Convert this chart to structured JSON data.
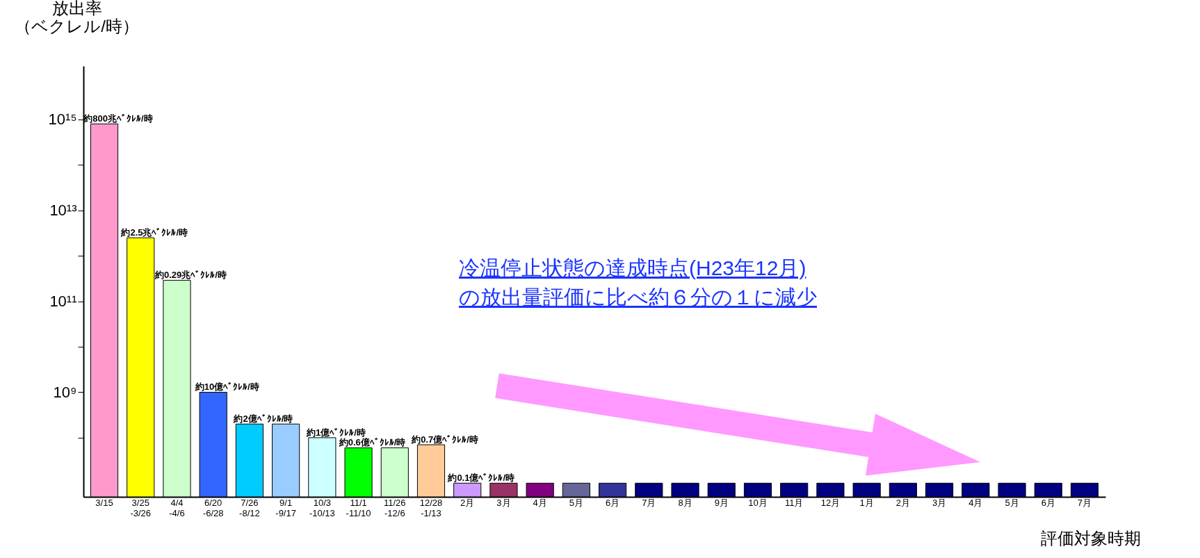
{
  "chart_data": {
    "type": "bar",
    "ylabel": "放出率（ベクレル/時）",
    "xlabel": "評価対象時期",
    "categories": [
      "3/15",
      "3/25\n-3/26",
      "4/4\n-4/6",
      "6/20\n-6/28",
      "7/26\n-8/12",
      "9/1\n-9/17",
      "10/3\n-10/13",
      "11/1\n-11/10",
      "11/26\n-12/6",
      "12/28\n-1/13",
      "2月",
      "3月",
      "4月",
      "5月",
      "6月",
      "7月",
      "8月",
      "9月",
      "10月",
      "11月",
      "12月",
      "1月",
      "2月",
      "3月",
      "4月",
      "5月",
      "6月",
      "7月"
    ],
    "values": [
      800000000000000.0,
      2500000000000.0,
      290000000000.0,
      1000000000.0,
      200000000.0,
      200000000.0,
      100000000.0,
      60000000.0,
      60000000.0,
      70000000.0,
      10000000.0,
      10000000.0,
      10000000.0,
      10000000.0,
      10000000.0,
      10000000.0,
      10000000.0,
      10000000.0,
      10000000.0,
      10000000.0,
      10000000.0,
      10000000.0,
      10000000.0,
      10000000.0,
      10000000.0,
      10000000.0,
      10000000.0,
      10000000.0
    ],
    "colors": [
      "#ff99cc",
      "#ffff00",
      "#ccffcc",
      "#3366ff",
      "#00ccff",
      "#99ccff",
      "#ccffff",
      "#00ff00",
      "#ccffcc",
      "#ffcc99",
      "#cc99ff",
      "#993366",
      "#800080",
      "#666699",
      "#333399",
      "#000080",
      "#000080",
      "#000080",
      "#000080",
      "#000080",
      "#000080",
      "#000080",
      "#000080",
      "#000080",
      "#000080",
      "#000080",
      "#000080",
      "#000080"
    ],
    "value_labels": [
      "約800兆ﾍﾞｸﾚﾙ/時",
      "約2.5兆ﾍﾞｸﾚﾙ/時",
      "約0.29兆ﾍﾞｸﾚﾙ/時",
      "約10億ﾍﾞｸﾚﾙ/時",
      "約2億ﾍﾞｸﾚﾙ/時",
      null,
      "約1億ﾍﾞｸﾚﾙ/時",
      "約0.6億ﾍﾞｸﾚﾙ/時",
      null,
      "約0.7億ﾍﾞｸﾚﾙ/時",
      "約0.1億ﾍﾞｸﾚﾙ/時",
      null,
      null,
      null,
      null,
      null,
      null,
      null,
      null,
      null,
      null,
      null,
      null,
      null,
      null,
      null,
      null,
      null
    ],
    "log": true,
    "ylim": [
      5000000.0,
      1.5e+16
    ],
    "yticks": [
      {
        "value": 100000000.0,
        "label": null
      },
      {
        "value": 1000000000.0,
        "label": "10⁹"
      },
      {
        "value": 10000000000.0,
        "label": null
      },
      {
        "value": 100000000000.0,
        "label": "10¹¹"
      },
      {
        "value": 1000000000000.0,
        "label": null
      },
      {
        "value": 10000000000000.0,
        "label": "10¹³"
      },
      {
        "value": 100000000000000.0,
        "label": null
      },
      {
        "value": 1000000000000000.0,
        "label": "10¹⁵"
      }
    ],
    "grid": false,
    "annotations": [
      "冷温停止状態の達成時点(H23年12月)\nの放出量評価に比べ約６分の１に減少"
    ]
  }
}
